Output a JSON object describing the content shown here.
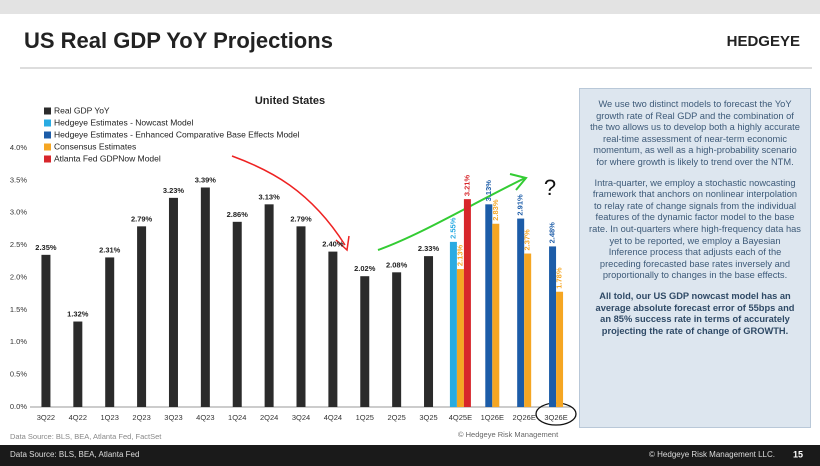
{
  "header": {
    "title": "US Real GDP YoY Projections",
    "logo": "HEDGEYE"
  },
  "chart_data": {
    "type": "bar",
    "title": "United States",
    "categories": [
      "3Q22",
      "4Q22",
      "1Q23",
      "2Q23",
      "3Q23",
      "4Q23",
      "1Q24",
      "2Q24",
      "3Q24",
      "4Q24",
      "1Q25",
      "2Q25",
      "3Q25",
      "4Q25E",
      "1Q26E",
      "2Q26E",
      "3Q26E"
    ],
    "series": [
      {
        "name": "Real GDP YoY",
        "color": "#2b2b2b",
        "values": [
          2.35,
          1.32,
          2.31,
          2.79,
          3.23,
          3.39,
          2.86,
          3.13,
          2.79,
          2.4,
          2.02,
          2.08,
          2.33,
          null,
          null,
          null,
          null
        ],
        "value_labels": [
          "2.35%",
          "1.32%",
          "2.31%",
          "2.79%",
          "3.23%",
          "3.39%",
          "2.86%",
          "3.13%",
          "2.79%",
          "2.40%",
          "2.02%",
          "2.08%",
          "2.33%",
          null,
          null,
          null,
          null
        ]
      },
      {
        "name": "Hedgeye Estimates - Nowcast Model",
        "color": "#29abe2",
        "values": [
          null,
          null,
          null,
          null,
          null,
          null,
          null,
          null,
          null,
          null,
          null,
          null,
          null,
          2.55,
          null,
          null,
          null
        ],
        "value_labels": [
          null,
          null,
          null,
          null,
          null,
          null,
          null,
          null,
          null,
          null,
          null,
          null,
          null,
          "2.55%",
          null,
          null,
          null
        ]
      },
      {
        "name": "Hedgeye Estimates - Enhanced Comparative Base Effects Model",
        "color": "#1c5ca8",
        "values": [
          null,
          null,
          null,
          null,
          null,
          null,
          null,
          null,
          null,
          null,
          null,
          null,
          null,
          null,
          3.13,
          2.91,
          2.48
        ],
        "value_labels": [
          null,
          null,
          null,
          null,
          null,
          null,
          null,
          null,
          null,
          null,
          null,
          null,
          null,
          null,
          "3.13%",
          "2.91%",
          "2.48%"
        ]
      },
      {
        "name": "Consensus Estimates",
        "color": "#f5a623",
        "values": [
          null,
          null,
          null,
          null,
          null,
          null,
          null,
          null,
          null,
          null,
          null,
          null,
          null,
          2.13,
          2.83,
          2.37,
          1.78
        ],
        "value_labels": [
          null,
          null,
          null,
          null,
          null,
          null,
          null,
          null,
          null,
          null,
          null,
          null,
          null,
          "2.13%",
          "2.83%",
          "2.37%",
          "1.78%"
        ]
      },
      {
        "name": "Atlanta Fed GDPNow Model",
        "color": "#d7262b",
        "values": [
          null,
          null,
          null,
          null,
          null,
          null,
          null,
          null,
          null,
          null,
          null,
          null,
          null,
          3.21,
          null,
          null,
          null
        ],
        "value_labels": [
          null,
          null,
          null,
          null,
          null,
          null,
          null,
          null,
          null,
          null,
          null,
          null,
          null,
          "3.21%",
          null,
          null,
          null
        ]
      }
    ],
    "ylim": [
      0,
      4
    ],
    "yticks": [
      {
        "value": 0,
        "label": "0.0%"
      },
      {
        "value": 0.5,
        "label": "0.5%"
      },
      {
        "value": 1,
        "label": "1.0%"
      },
      {
        "value": 1.5,
        "label": "1.5%"
      },
      {
        "value": 2,
        "label": "2.0%"
      },
      {
        "value": 2.5,
        "label": "2.5%"
      },
      {
        "value": 3,
        "label": "3.0%"
      },
      {
        "value": 3.5,
        "label": "3.5%"
      },
      {
        "value": 4,
        "label": "4.0%"
      }
    ],
    "grid": false,
    "legend": "top-left",
    "annotations": [
      "?"
    ],
    "source_note": "Data Source: BLS, BEA, Atlanta Fed, FactSet",
    "copyright_note": "© Hedgeye Risk Management"
  },
  "text_box": {
    "paragraphs": [
      "We use two distinct models to forecast the YoY growth rate of Real GDP and the combination of the two allows us to develop both a highly accurate real-time assessment of near-term economic momentum, as well as a high-probability scenario for where growth is likely to trend over the NTM.",
      "Intra-quarter, we employ a stochastic nowcasting framework that anchors on nonlinear interpolation to relay rate of change signals from the individual features of the dynamic factor model to the base rate. In out-quarters where high-frequency data has yet to be reported, we employ a Bayesian Inference process that adjusts each of the preceding forecasted base rates inversely and proportionally to changes in the base effects.",
      "All told, our US GDP nowcast model has an average absolute forecast error of 55bps and an 85% success rate in terms of accurately projecting the rate of change of GROWTH."
    ]
  },
  "footer": {
    "source": "Data Source: BLS, BEA, Atlanta Fed",
    "copyright": "© Hedgeye Risk Management LLC.",
    "page": "15"
  }
}
